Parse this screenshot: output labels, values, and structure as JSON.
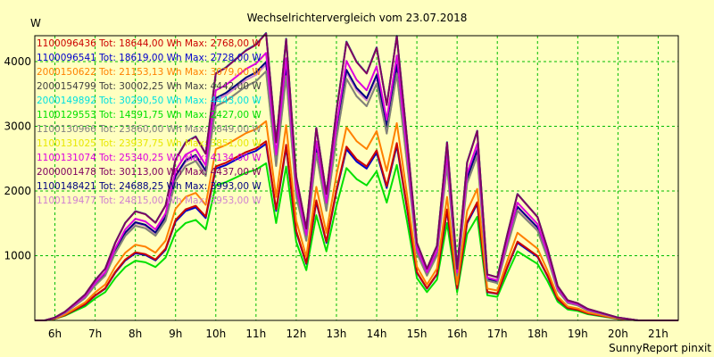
{
  "footer": "SunnyReport pinxit",
  "chart_data": {
    "type": "line",
    "title": "Wechselrichtervergleich vom 23.07.2018",
    "ylabel": "W",
    "xlabel": "",
    "xlim": [
      5.5,
      21.5
    ],
    "ylim": [
      0,
      4400
    ],
    "x_ticks": [
      {
        "v": 6,
        "label": "6h"
      },
      {
        "v": 7,
        "label": "7h"
      },
      {
        "v": 8,
        "label": "8h"
      },
      {
        "v": 9,
        "label": "9h"
      },
      {
        "v": 10,
        "label": "10h"
      },
      {
        "v": 11,
        "label": "11h"
      },
      {
        "v": 12,
        "label": "12h"
      },
      {
        "v": 13,
        "label": "13h"
      },
      {
        "v": 14,
        "label": "14h"
      },
      {
        "v": 15,
        "label": "15h"
      },
      {
        "v": 16,
        "label": "16h"
      },
      {
        "v": 17,
        "label": "17h"
      },
      {
        "v": 18,
        "label": "18h"
      },
      {
        "v": 19,
        "label": "19h"
      },
      {
        "v": 20,
        "label": "20h"
      },
      {
        "v": 21,
        "label": "21h"
      }
    ],
    "y_ticks": [
      1000,
      2000,
      3000,
      4000
    ],
    "grid": true,
    "legend_position": "top-left",
    "x": [
      5.5,
      5.75,
      6.0,
      6.25,
      6.5,
      6.75,
      7.0,
      7.25,
      7.5,
      7.75,
      8.0,
      8.25,
      8.5,
      8.75,
      9.0,
      9.25,
      9.5,
      9.75,
      10.0,
      10.25,
      10.5,
      10.75,
      11.0,
      11.25,
      11.5,
      11.75,
      12.0,
      12.25,
      12.5,
      12.75,
      13.0,
      13.25,
      13.5,
      13.75,
      14.0,
      14.25,
      14.5,
      14.75,
      15.0,
      15.25,
      15.5,
      15.75,
      16.0,
      16.25,
      16.5,
      16.75,
      17.0,
      17.25,
      17.5,
      17.75,
      18.0,
      18.25,
      18.5,
      18.75,
      19.0,
      19.25,
      19.5,
      19.75,
      20.0,
      20.25,
      20.5,
      20.75,
      21.0,
      21.25,
      21.5
    ],
    "shape": [
      0,
      0,
      0.01,
      0.03,
      0.06,
      0.09,
      0.14,
      0.18,
      0.27,
      0.34,
      0.38,
      0.37,
      0.34,
      0.4,
      0.56,
      0.62,
      0.64,
      0.58,
      0.86,
      0.88,
      0.91,
      0.94,
      0.96,
      1.0,
      0.62,
      0.98,
      0.5,
      0.32,
      0.67,
      0.44,
      0.73,
      0.97,
      0.9,
      0.86,
      0.95,
      0.75,
      0.99,
      0.64,
      0.27,
      0.18,
      0.26,
      0.62,
      0.18,
      0.55,
      0.66,
      0.16,
      0.15,
      0.3,
      0.44,
      0.4,
      0.36,
      0.25,
      0.12,
      0.07,
      0.06,
      0.04,
      0.03,
      0.02,
      0.01,
      0.005,
      0,
      0,
      0,
      0,
      0
    ],
    "series": [
      {
        "name": "1100096436",
        "label": "1100096436 Tot: 18644,00 Wh Max: 2768,00 W",
        "color": "#cc0000",
        "max": 2768
      },
      {
        "name": "1100096541",
        "label": "1100096541 Tot: 18619,00 Wh Max: 2728,00 W",
        "color": "#0000cc",
        "max": 2728
      },
      {
        "name": "2000150622",
        "label": "2000150622 Tot: 21153,13 Wh Max: 3079,00 W",
        "color": "#ff8000",
        "max": 3079
      },
      {
        "name": "2000154799",
        "label": "2000154799 Tot: 30002,25 Wh Max: 4442,00 W",
        "color": "#404040",
        "max": 4442
      },
      {
        "name": "2000149892",
        "label": "2000149892 Tot: 30290,50 Wh Max: 4443,00 W",
        "color": "#00e0e0",
        "max": 4443
      },
      {
        "name": "1100129553",
        "label": "1100129553 Tot: 14591,75 Wh Max: 2427,00 W",
        "color": "#00e000",
        "max": 2427
      },
      {
        "name": "1100130966",
        "label": "1100130966 Tot: 23860,00 Wh Max: 3849,00 W",
        "color": "#808080",
        "max": 3849
      },
      {
        "name": "1100131025",
        "label": "1100131025 Tot: 23937,75 Wh Max: 3851,00 W",
        "color": "#e8e800",
        "max": 3851
      },
      {
        "name": "1100131074",
        "label": "1100131074 Tot: 25340,25 Wh Max: 4134,00 W",
        "color": "#dd00dd",
        "max": 4134
      },
      {
        "name": "2000001478",
        "label": "2000001478 Tot: 30113,00 Wh Max: 4437,00 W",
        "color": "#800060",
        "max": 4437
      },
      {
        "name": "1100148421",
        "label": "1100148421 Tot: 24688,25 Wh Max: 3993,00 W",
        "color": "#000080",
        "max": 3993
      },
      {
        "name": "1100119477",
        "label": "1100119477 Tot: 24815,00 Wh Max: 3953,00 W",
        "color": "#d080d0",
        "max": 3953
      }
    ]
  }
}
